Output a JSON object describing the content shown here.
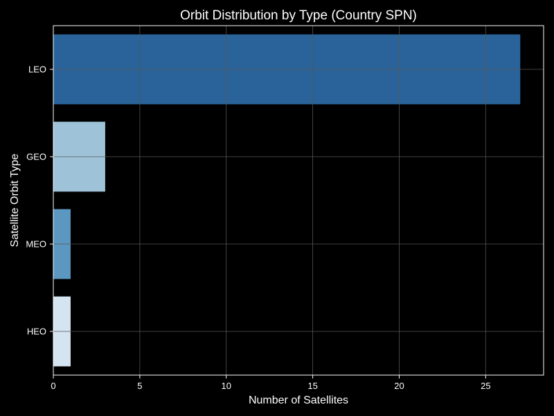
{
  "chart_data": {
    "type": "bar",
    "orientation": "horizontal",
    "title": "Orbit Distribution by Type (Country SPN)",
    "xlabel": "Number of Satellites",
    "ylabel": "Satellite Orbit Type",
    "categories": [
      "LEO",
      "GEO",
      "MEO",
      "HEO"
    ],
    "values": [
      27,
      3,
      1,
      1
    ],
    "colors": [
      "#2a6399",
      "#9ec3d8",
      "#5b97c0",
      "#d5e4f1"
    ],
    "xlim": [
      0,
      28.35
    ],
    "xticks": [
      0,
      5,
      10,
      15,
      20,
      25
    ],
    "grid": true,
    "background": "#000000",
    "text_color": "#ffffff",
    "grid_color": "#555555"
  }
}
